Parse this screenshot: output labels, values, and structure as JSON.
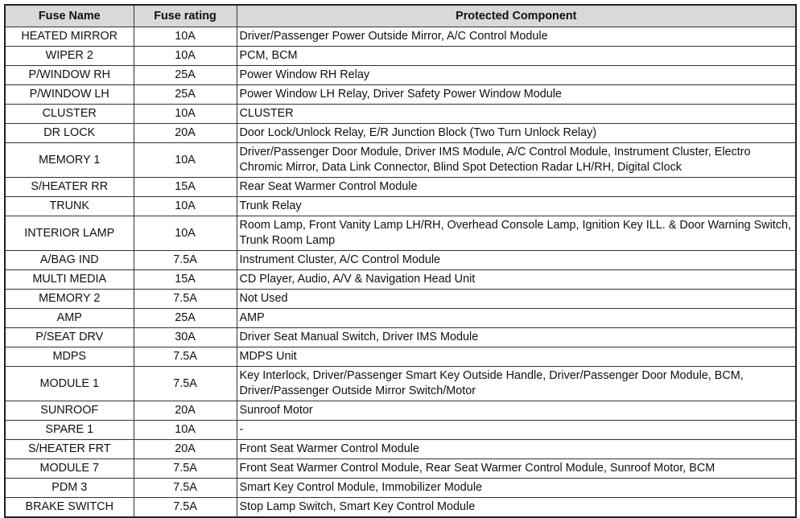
{
  "table": {
    "headers": [
      "Fuse Name",
      "Fuse rating",
      "Protected Component"
    ],
    "rows": [
      [
        "HEATED MIRROR",
        "10A",
        "Driver/Passenger Power Outside Mirror, A/C Control Module"
      ],
      [
        "WIPER 2",
        "10A",
        "PCM, BCM"
      ],
      [
        "P/WINDOW RH",
        "25A",
        "Power Window RH Relay"
      ],
      [
        "P/WINDOW LH",
        "25A",
        "Power Window LH Relay, Driver Safety Power Window Module"
      ],
      [
        "CLUSTER",
        "10A",
        "CLUSTER"
      ],
      [
        "DR LOCK",
        "20A",
        "Door Lock/Unlock Relay, E/R Junction Block (Two Turn Unlock Relay)"
      ],
      [
        "MEMORY 1",
        "10A",
        "Driver/Passenger Door Module, Driver IMS Module, A/C Control Module, Instrument Cluster, Electro Chromic Mirror, Data Link Connector, Blind Spot Detection Radar LH/RH, Digital Clock"
      ],
      [
        "S/HEATER RR",
        "15A",
        "Rear Seat Warmer Control Module"
      ],
      [
        "TRUNK",
        "10A",
        "Trunk Relay"
      ],
      [
        "INTERIOR LAMP",
        "10A",
        "Room Lamp, Front Vanity Lamp LH/RH, Overhead Console Lamp, Ignition Key ILL. & Door Warning Switch, Trunk Room Lamp"
      ],
      [
        "A/BAG IND",
        "7.5A",
        "Instrument Cluster, A/C Control Module"
      ],
      [
        "MULTI MEDIA",
        "15A",
        "CD Player, Audio, A/V & Navigation Head Unit"
      ],
      [
        "MEMORY 2",
        "7.5A",
        "Not Used"
      ],
      [
        "AMP",
        "25A",
        "AMP"
      ],
      [
        "P/SEAT DRV",
        "30A",
        "Driver Seat Manual Switch, Driver IMS Module"
      ],
      [
        "MDPS",
        "7.5A",
        "MDPS Unit"
      ],
      [
        "MODULE 1",
        "7.5A",
        "Key Interlock, Driver/Passenger Smart Key Outside Handle, Driver/Passenger Door Module, BCM, Driver/Passenger Outside Mirror Switch/Motor"
      ],
      [
        "SUNROOF",
        "20A",
        "Sunroof Motor"
      ],
      [
        "SPARE 1",
        "10A",
        "-"
      ],
      [
        "S/HEATER FRT",
        "20A",
        "Front Seat Warmer Control Module"
      ],
      [
        "MODULE 7",
        "7.5A",
        "Front Seat Warmer Control Module, Rear Seat Warmer Control Module, Sunroof Motor, BCM"
      ],
      [
        "PDM 3",
        "7.5A",
        "Smart Key Control Module, Immobilizer Module"
      ],
      [
        "BRAKE SWITCH",
        "7.5A",
        "Stop Lamp Switch, Smart Key Control Module"
      ]
    ]
  }
}
